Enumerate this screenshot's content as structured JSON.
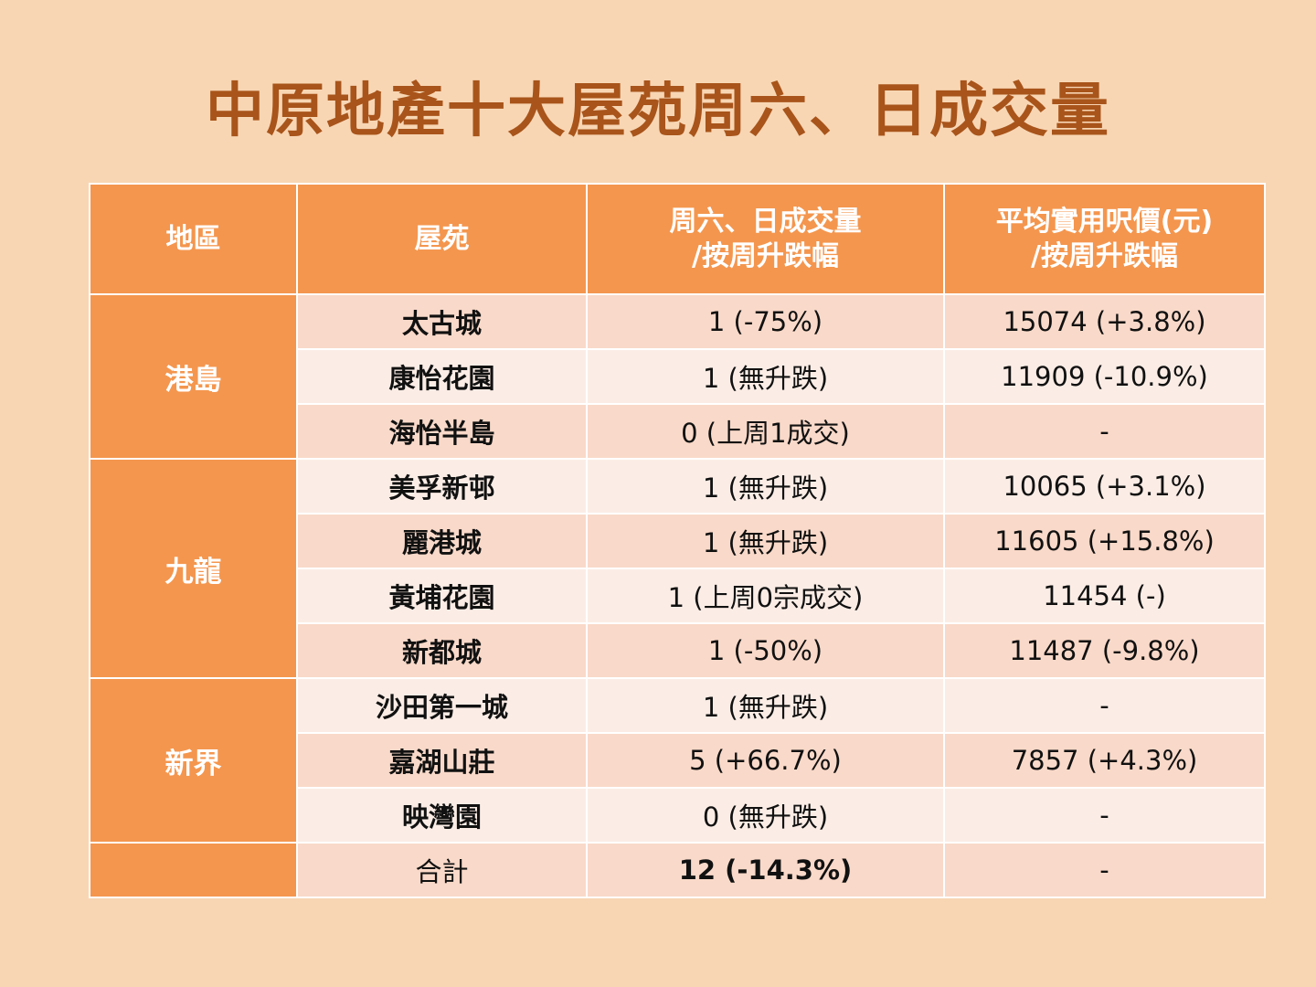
{
  "title": "中原地產十大屋苑周六、日成交量",
  "table": {
    "headers": {
      "region": "地區",
      "estate": "屋苑",
      "volume_line1": "周六、日成交量",
      "volume_line2": "/按周升跌幅",
      "price_line1": "平均實用呎價(元)",
      "price_line2": "/按周升跌幅"
    },
    "regions": [
      "港島",
      "九龍",
      "新界"
    ],
    "rows": [
      {
        "estate": "太古城",
        "volume": "1 (-75%)",
        "price": "15074 (+3.8%)"
      },
      {
        "estate": "康怡花園",
        "volume": "1 (無升跌)",
        "price": "11909 (-10.9%)"
      },
      {
        "estate": "海怡半島",
        "volume": "0 (上周1成交)",
        "price": "-"
      },
      {
        "estate": "美孚新邨",
        "volume": "1 (無升跌)",
        "price": "10065 (+3.1%)"
      },
      {
        "estate": "麗港城",
        "volume": "1 (無升跌)",
        "price": "11605 (+15.8%)"
      },
      {
        "estate": "黃埔花園",
        "volume": "1 (上周0宗成交)",
        "price": "11454 (-)"
      },
      {
        "estate": "新都城",
        "volume": "1 (-50%)",
        "price": "11487 (-9.8%)"
      },
      {
        "estate": "沙田第一城",
        "volume": "1 (無升跌)",
        "price": "-"
      },
      {
        "estate": "嘉湖山莊",
        "volume": "5 (+66.7%)",
        "price": "7857 (+4.3%)"
      },
      {
        "estate": "映灣園",
        "volume": "0 (無升跌)",
        "price": "-"
      }
    ],
    "total": {
      "label": "合計",
      "volume": "12 (-14.3%)",
      "price": "-"
    }
  }
}
